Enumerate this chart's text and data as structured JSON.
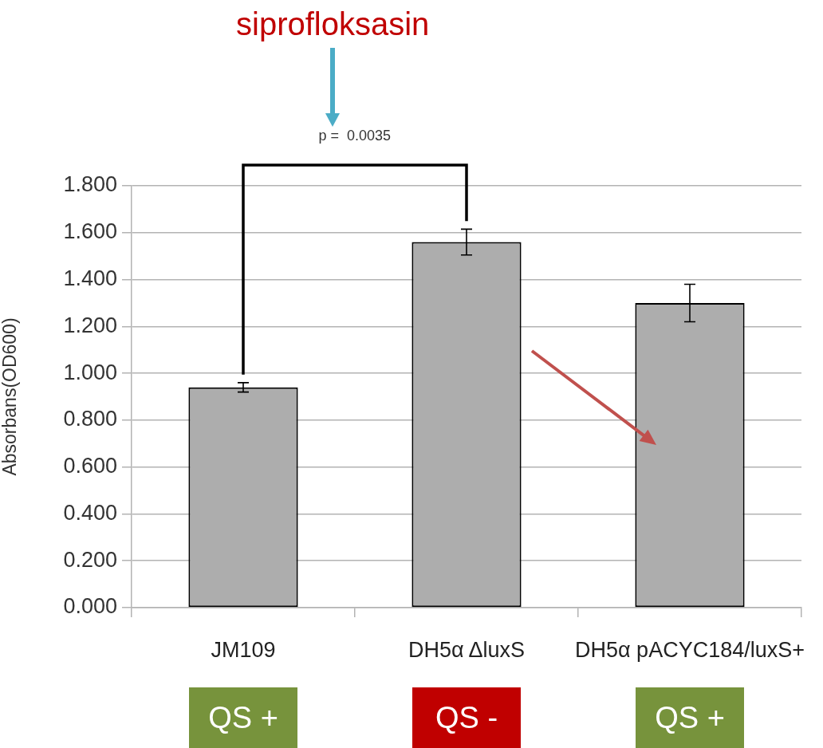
{
  "chart_data": {
    "type": "bar",
    "categories": [
      "JM109",
      "DH5α ΔluxS",
      "DH5α pACYC184/luxS+"
    ],
    "values": [
      0.94,
      1.56,
      1.3
    ],
    "errors": [
      0.02,
      0.055,
      0.08
    ],
    "color": "#adadad",
    "ylabel": "Absorbans(OD600)",
    "ylim": [
      0,
      1.8
    ],
    "yticks": [
      {
        "value": 0,
        "label": "0.000"
      },
      {
        "value": 0.2,
        "label": "0.200"
      },
      {
        "value": 0.4,
        "label": "0.400"
      },
      {
        "value": 0.6,
        "label": "0.600"
      },
      {
        "value": 0.8,
        "label": "0.800"
      },
      {
        "value": 1,
        "label": "1.000"
      },
      {
        "value": 1.2,
        "label": "1.200"
      },
      {
        "value": 1.4,
        "label": "1.400"
      },
      {
        "value": 1.6,
        "label": "1.600"
      },
      {
        "value": 1.8,
        "label": "1.800"
      }
    ],
    "grid": "y",
    "annotations": [
      "siprofloksasin",
      "p =  0.0035",
      "QS +",
      "QS -",
      "QS +"
    ]
  }
}
